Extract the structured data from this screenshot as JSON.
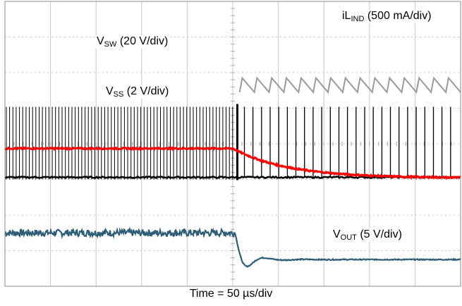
{
  "chart_data": {
    "type": "line",
    "title": "",
    "xlabel": "Time = 50 µs/div",
    "x_divisions": 10,
    "y_divisions": 8,
    "grid": true,
    "trigger_division": 5.1,
    "series": [
      {
        "name": "VSW",
        "label_main": "V",
        "label_sub": "SW",
        "label_rest": " (20 V/div)",
        "color": "#000000",
        "description": "switching waveform: ~0 V baseline with pulses; dense before trigger, sparse after",
        "baseline_div": 3.06,
        "pulse_top_div": 5.04,
        "pulses_before": 70,
        "pulses_after": 25
      },
      {
        "name": "VSS",
        "label_main": "V",
        "label_sub": "SS",
        "label_rest": " (2 V/div)",
        "color": "#ff0000",
        "baseline_before_div": 3.87,
        "final_div": 3.04,
        "decay_tau_div": 1.2
      },
      {
        "name": "iLIND",
        "label_main": "iL",
        "label_sub": "IND",
        "label_rest": " (500 mA/div)",
        "color": "#9a9a9a",
        "description": "sawtooth inductor current visible after trigger",
        "upper_div": 5.85,
        "lower_div": 5.45,
        "cycles": 15
      },
      {
        "name": "VOUT",
        "label_main": "V",
        "label_sub": "OUT",
        "label_rest": " (5 V/div)",
        "color": "#2e5d78",
        "level_before_div": 1.5,
        "dip_div": 0.6,
        "settled_div": 0.75,
        "ripple_div": 0.12
      }
    ]
  }
}
